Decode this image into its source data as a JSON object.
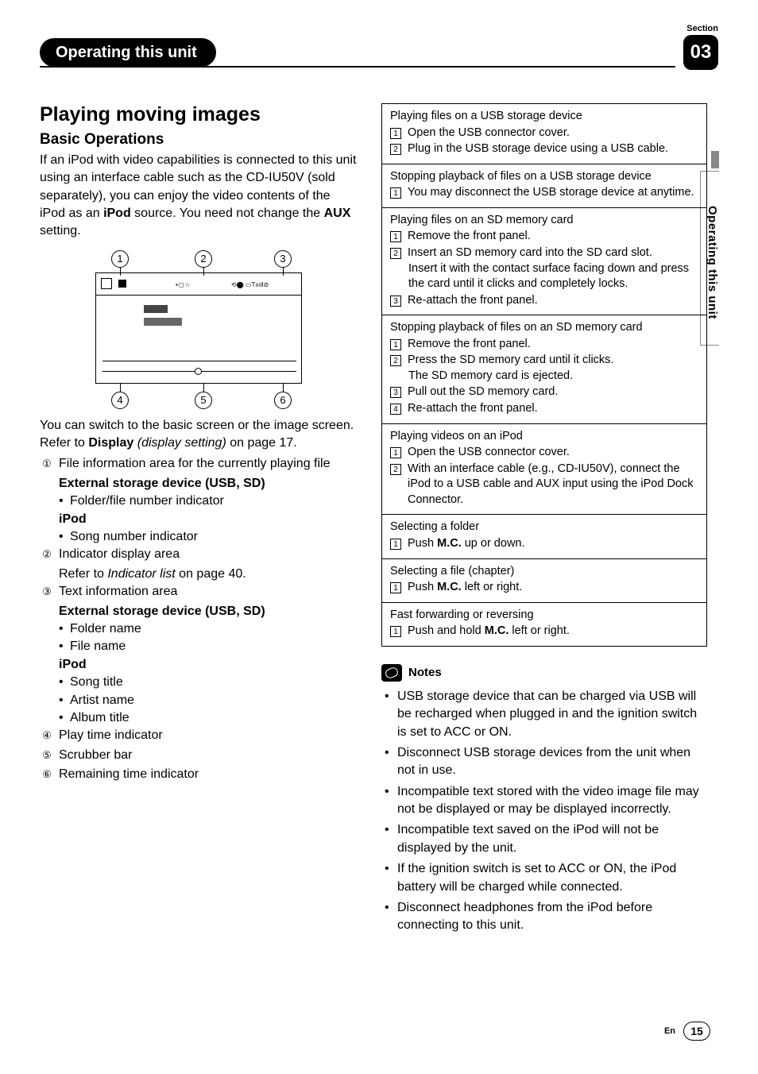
{
  "header": {
    "section_label": "Section",
    "tab_title": "Operating this unit",
    "section_number": "03",
    "side_tab": "Operating this unit"
  },
  "left": {
    "h1": "Playing moving images",
    "h2": "Basic Operations",
    "intro_1": "If an iPod with video capabilities is connected to this unit using an interface cable such as the CD-IU50V (sold separately), you can enjoy the video contents of the iPod as an ",
    "intro_bold1": "iPod",
    "intro_2": " source. You need not change the ",
    "intro_bold2": "AUX",
    "intro_3": " setting.",
    "diagram_labels": [
      "1",
      "2",
      "3",
      "4",
      "5",
      "6"
    ],
    "after_diag_1": "You can switch to the basic screen or the image screen.",
    "after_diag_2a": "Refer to ",
    "after_diag_2b": "Display",
    "after_diag_2c": "(display setting)",
    "after_diag_2d": " on page 17.",
    "item1": {
      "num": "①",
      "text": "File information area for the currently playing file",
      "sub_a": "External storage device (USB, SD)",
      "bullet_a": "Folder/file number indicator",
      "sub_b": "iPod",
      "bullet_b": "Song number indicator"
    },
    "item2": {
      "num": "②",
      "text": "Indicator display area",
      "ref_a": "Refer to ",
      "ref_i": "Indicator list",
      "ref_b": " on page 40."
    },
    "item3": {
      "num": "③",
      "text": "Text information area",
      "sub_a": "External storage device (USB, SD)",
      "bullets_a": [
        "Folder name",
        "File name"
      ],
      "sub_b": "iPod",
      "bullets_b": [
        "Song title",
        "Artist name",
        "Album title"
      ]
    },
    "item4": {
      "num": "④",
      "text": "Play time indicator"
    },
    "item5": {
      "num": "⑤",
      "text": "Scrubber bar"
    },
    "item6": {
      "num": "⑥",
      "text": "Remaining time indicator"
    }
  },
  "right": {
    "cells": [
      {
        "title": "Playing files on a USB storage device",
        "steps": [
          {
            "n": "1",
            "t": "Open the USB connector cover."
          },
          {
            "n": "2",
            "t": "Plug in the USB storage device using a USB cable."
          }
        ]
      },
      {
        "title": "Stopping playback of files on a USB storage device",
        "steps": [
          {
            "n": "1",
            "t": "You may disconnect the USB storage device at anytime."
          }
        ]
      },
      {
        "title": "Playing files on an SD memory card",
        "steps": [
          {
            "n": "1",
            "t": "Remove the front panel."
          },
          {
            "n": "2",
            "t": "Insert an SD memory card into the SD card slot.",
            "cont": "Insert it with the contact surface facing down and press the card until it clicks and completely locks."
          },
          {
            "n": "3",
            "t": "Re-attach the front panel."
          }
        ]
      },
      {
        "title": "Stopping playback of files on an SD memory card",
        "steps": [
          {
            "n": "1",
            "t": "Remove the front panel."
          },
          {
            "n": "2",
            "t": "Press the SD memory card until it clicks.",
            "cont": "The SD memory card is ejected."
          },
          {
            "n": "3",
            "t": "Pull out the SD memory card."
          },
          {
            "n": "4",
            "t": "Re-attach the front panel."
          }
        ]
      },
      {
        "title": "Playing videos on an iPod",
        "steps": [
          {
            "n": "1",
            "t": "Open the USB connector cover."
          },
          {
            "n": "2",
            "t": "With an interface cable (e.g., CD-IU50V), connect the iPod to a USB cable and AUX input using the iPod Dock Connector."
          }
        ]
      },
      {
        "title": "Selecting a folder",
        "steps": [
          {
            "n": "1",
            "t_pre": "Push ",
            "t_b": "M.C.",
            "t_post": " up or down."
          }
        ]
      },
      {
        "title": "Selecting a file (chapter)",
        "steps": [
          {
            "n": "1",
            "t_pre": "Push ",
            "t_b": "M.C.",
            "t_post": " left or right."
          }
        ]
      },
      {
        "title": "Fast forwarding or reversing",
        "steps": [
          {
            "n": "1",
            "t_pre": "Push and hold ",
            "t_b": "M.C.",
            "t_post": " left or right."
          }
        ]
      }
    ],
    "notes_title": "Notes",
    "notes": [
      "USB storage device that can be charged via USB will be recharged when plugged in and the ignition switch is set to ACC or ON.",
      "Disconnect USB storage devices from the unit when not in use.",
      "Incompatible text stored with the video image file may not be displayed or may be displayed incorrectly.",
      "Incompatible text saved on the iPod will not be displayed by the unit.",
      "If the ignition switch is set to ACC or ON, the iPod battery will be charged while connected.",
      "Disconnect headphones from the iPod before connecting to this unit."
    ]
  },
  "footer": {
    "lang": "En",
    "page": "15"
  }
}
